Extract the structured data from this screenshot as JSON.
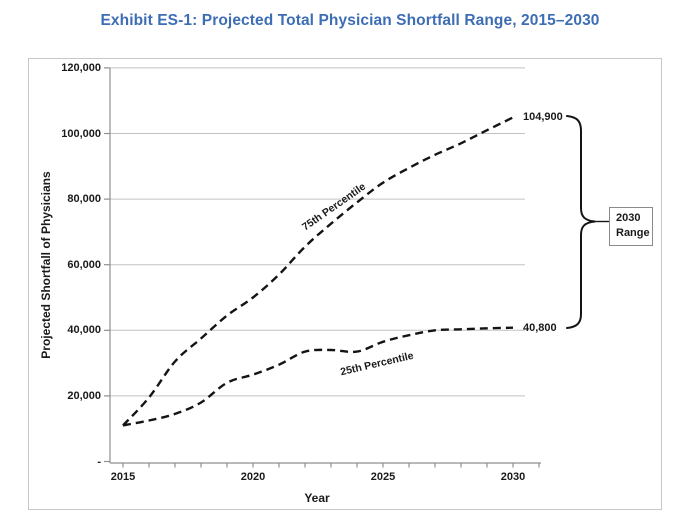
{
  "chart_data": {
    "type": "line",
    "title": "Exhibit ES-1: Projected Total Physician Shortfall Range, 2015–2030",
    "title_color": "#3D6EB5",
    "xlabel": "Year",
    "ylabel": "Projected Shortfall of Physicians",
    "x": [
      2015,
      2016,
      2017,
      2018,
      2019,
      2020,
      2021,
      2022,
      2023,
      2024,
      2025,
      2026,
      2027,
      2028,
      2029,
      2030
    ],
    "series": [
      {
        "name": "75th Percentile",
        "values": [
          11000,
          19500,
          30500,
          37500,
          44500,
          50000,
          57000,
          65500,
          72500,
          79000,
          85000,
          89500,
          93500,
          97000,
          101000,
          104900
        ],
        "end_label": "104,900",
        "line_style": "dashed",
        "color": "#141414"
      },
      {
        "name": "25th Percentile",
        "values": [
          11000,
          12500,
          14500,
          18000,
          24000,
          26500,
          29500,
          33500,
          34000,
          33500,
          36500,
          38500,
          40000,
          40300,
          40600,
          40800
        ],
        "end_label": "40,800",
        "line_style": "dashed",
        "color": "#141414"
      }
    ],
    "y_ticks": {
      "values": [
        0,
        20000,
        40000,
        60000,
        80000,
        100000,
        120000
      ],
      "labels": [
        "-",
        "20,000",
        "40,000",
        "60,000",
        "80,000",
        "100,000",
        "120,000"
      ]
    },
    "x_ticks": {
      "values": [
        2015,
        2020,
        2025,
        2030
      ],
      "labels": [
        "2015",
        "2020",
        "2025",
        "2030"
      ]
    },
    "x_minor_tick_step": 1,
    "xlim": [
      2015,
      2031
    ],
    "ylim": [
      0,
      120000
    ],
    "grid": "horizontal",
    "legend": "none",
    "annotation": {
      "label_line1": "2030",
      "label_line2": "Range",
      "brace_top_value": "104,900",
      "brace_bottom_value": "40,800"
    }
  }
}
